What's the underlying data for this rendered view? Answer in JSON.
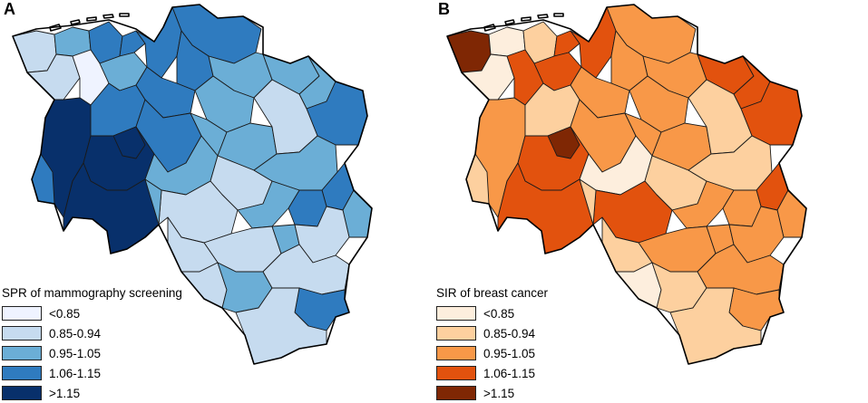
{
  "panels": [
    {
      "id": "A",
      "label": "A",
      "legend_title": "SPR of mammography screening",
      "classes": [
        {
          "label": "<0.85",
          "color": "#eff3ff"
        },
        {
          "label": "0.85-0.94",
          "color": "#c6dbef"
        },
        {
          "label": "0.95-1.05",
          "color": "#6baed6"
        },
        {
          "label": "1.06-1.15",
          "color": "#2f7bbf"
        },
        {
          "label": ">1.15",
          "color": "#08306b"
        }
      ]
    },
    {
      "id": "B",
      "label": "B",
      "legend_title": "SIR of breast cancer",
      "classes": [
        {
          "label": "<0.85",
          "color": "#fdeedd"
        },
        {
          "label": "0.85-0.94",
          "color": "#fdd09f"
        },
        {
          "label": "0.95-1.05",
          "color": "#f89848"
        },
        {
          "label": "1.06-1.15",
          "color": "#e2520e"
        },
        {
          "label": ">1.15",
          "color": "#7f2704"
        }
      ]
    }
  ],
  "districts": [
    {
      "id": "frisian-islands",
      "a": 0,
      "b": 1
    },
    {
      "id": "aurich",
      "a": 1,
      "b": 4
    },
    {
      "id": "wittmund",
      "a": 2,
      "b": 0
    },
    {
      "id": "friesland",
      "a": 3,
      "b": 1
    },
    {
      "id": "wilhelmshaven",
      "a": 3,
      "b": 3
    },
    {
      "id": "cuxhaven",
      "a": 3,
      "b": 2
    },
    {
      "id": "wesermarsch",
      "a": 3,
      "b": 3
    },
    {
      "id": "leer",
      "a": 1,
      "b": 0
    },
    {
      "id": "ammerland",
      "a": 0,
      "b": 3
    },
    {
      "id": "oldenburg-city",
      "a": 2,
      "b": 3
    },
    {
      "id": "osterholz",
      "a": 3,
      "b": 2
    },
    {
      "id": "stade",
      "a": 2,
      "b": 2
    },
    {
      "id": "harburg",
      "a": 2,
      "b": 3
    },
    {
      "id": "luneburg",
      "a": 2,
      "b": 3
    },
    {
      "id": "luchow-dannenberg",
      "a": 3,
      "b": 3
    },
    {
      "id": "rotenburg",
      "a": 2,
      "b": 2
    },
    {
      "id": "emsland",
      "a": 4,
      "b": 2
    },
    {
      "id": "cloppenburg",
      "a": 3,
      "b": 1
    },
    {
      "id": "oldenburg-district",
      "a": 3,
      "b": 2
    },
    {
      "id": "diepholz",
      "a": 3,
      "b": 2
    },
    {
      "id": "verden",
      "a": 2,
      "b": 2
    },
    {
      "id": "heidekreis",
      "a": 2,
      "b": 2
    },
    {
      "id": "uelzen",
      "a": 1,
      "b": 1
    },
    {
      "id": "grafschaft-bentheim",
      "a": 3,
      "b": 1
    },
    {
      "id": "osnabruck",
      "a": 4,
      "b": 3
    },
    {
      "id": "vechta",
      "a": 4,
      "b": 4
    },
    {
      "id": "osnabruck-city",
      "a": 4,
      "b": 3
    },
    {
      "id": "nienburg",
      "a": 2,
      "b": 0
    },
    {
      "id": "celle",
      "a": 1,
      "b": 1
    },
    {
      "id": "gifhorn",
      "a": 2,
      "b": 1
    },
    {
      "id": "hannover-region",
      "a": 1,
      "b": 3
    },
    {
      "id": "schaumburg",
      "a": 2,
      "b": 1
    },
    {
      "id": "wolfsburg",
      "a": 3,
      "b": 3
    },
    {
      "id": "helmstedt",
      "a": 2,
      "b": 2
    },
    {
      "id": "braunschweig",
      "a": 3,
      "b": 2
    },
    {
      "id": "peine",
      "a": 2,
      "b": 2
    },
    {
      "id": "hildesheim",
      "a": 1,
      "b": 2
    },
    {
      "id": "hameln-pyrmont",
      "a": 1,
      "b": 1
    },
    {
      "id": "salzgitter",
      "a": 2,
      "b": 2
    },
    {
      "id": "wolfenbuttel",
      "a": 1,
      "b": 2
    },
    {
      "id": "holzminden",
      "a": 1,
      "b": 0
    },
    {
      "id": "northeim",
      "a": 2,
      "b": 1
    },
    {
      "id": "goslar",
      "a": 1,
      "b": 2
    },
    {
      "id": "osterode",
      "a": 3,
      "b": 2
    },
    {
      "id": "gottingen",
      "a": 1,
      "b": 1
    }
  ]
}
